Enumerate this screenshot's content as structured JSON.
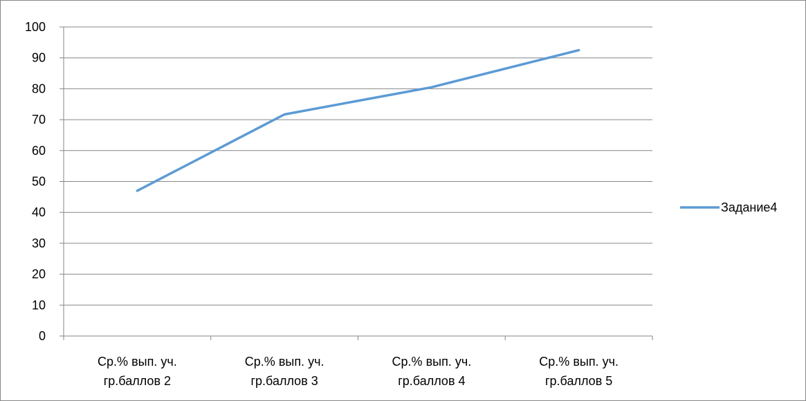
{
  "chart_data": {
    "type": "line",
    "categories": [
      [
        "Ср.% вып. уч.",
        "гр.баллов 2"
      ],
      [
        "Ср.% вып. уч.",
        "гр.баллов 3"
      ],
      [
        "Ср.% вып. уч.",
        "гр.баллов 4"
      ],
      [
        "Ср.% вып. уч.",
        "гр.баллов 5"
      ]
    ],
    "series": [
      {
        "name": "Задание4",
        "values": [
          47,
          71.7,
          80.5,
          92.5
        ],
        "color": "#5b9bd5"
      }
    ],
    "ylim": [
      0,
      100
    ],
    "yticks": [
      0,
      10,
      20,
      30,
      40,
      50,
      60,
      70,
      80,
      90,
      100
    ],
    "grid": true,
    "legend_position": "right"
  }
}
